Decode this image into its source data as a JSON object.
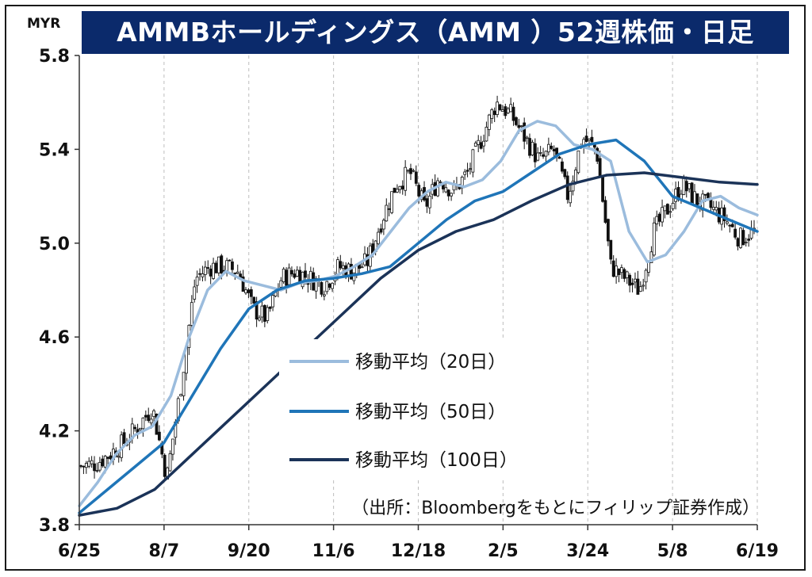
{
  "header": {
    "title": "AMMBホールディングス（AMM ）52週株価・日足",
    "unit": "MYR"
  },
  "source_note": "（出所：Bloombergをもとにフィリップ証券作成）",
  "chart_data": {
    "type": "line",
    "title": "AMMBホールディングス（AMM ）52週株価・日足",
    "ylabel": "MYR",
    "ylim": [
      3.8,
      5.8
    ],
    "yticks": [
      "3.8",
      "4.2",
      "4.6",
      "5.0",
      "5.4",
      "5.8"
    ],
    "yticks_values": [
      3.8,
      4.2,
      4.6,
      5.0,
      5.4,
      5.8
    ],
    "xticks": [
      "6/25",
      "8/7",
      "9/20",
      "11/6",
      "12/18",
      "2/5",
      "3/24",
      "5/8",
      "6/19"
    ],
    "grid": "vertical dashed",
    "legend_position": "center",
    "price_style": "candlestick",
    "price_anchors": [
      4.05,
      4.06,
      4.1,
      4.15,
      4.22,
      4.3,
      4.0,
      4.4,
      4.85,
      4.9,
      4.9,
      4.88,
      4.72,
      4.68,
      4.85,
      4.88,
      4.85,
      4.82,
      4.9,
      4.88,
      4.92,
      5.1,
      5.25,
      5.3,
      5.15,
      5.28,
      5.22,
      5.3,
      5.45,
      5.6,
      5.55,
      5.45,
      5.35,
      5.4,
      5.2,
      5.45,
      5.4,
      4.9,
      4.85,
      4.8,
      5.05,
      5.15,
      5.25,
      5.18,
      5.15,
      5.1,
      5.02,
      5.05
    ],
    "series": [
      {
        "name": "移動平均（20日）",
        "color": "#9bbcdd",
        "values": [
          3.88,
          3.98,
          4.1,
          4.18,
          4.22,
          4.35,
          4.6,
          4.8,
          4.88,
          4.84,
          4.82,
          4.8,
          4.83,
          4.84,
          4.86,
          4.9,
          4.95,
          5.05,
          5.15,
          5.22,
          5.26,
          5.24,
          5.27,
          5.35,
          5.48,
          5.52,
          5.5,
          5.42,
          5.4,
          5.35,
          5.05,
          4.92,
          4.95,
          5.05,
          5.18,
          5.2,
          5.15,
          5.12
        ]
      },
      {
        "name": "移動平均（50日）",
        "color": "#1f75b8",
        "values": [
          3.85,
          3.95,
          4.05,
          4.15,
          4.35,
          4.55,
          4.72,
          4.8,
          4.84,
          4.85,
          4.87,
          4.9,
          5.0,
          5.1,
          5.18,
          5.22,
          5.3,
          5.38,
          5.42,
          5.44,
          5.35,
          5.2,
          5.15,
          5.1,
          5.05
        ]
      },
      {
        "name": "移動平均（100日）",
        "color": "#1b3358",
        "values": [
          3.84,
          3.87,
          3.95,
          4.1,
          4.25,
          4.4,
          4.55,
          4.7,
          4.85,
          4.97,
          5.05,
          5.1,
          5.18,
          5.25,
          5.29,
          5.3,
          5.28,
          5.26,
          5.25
        ]
      }
    ]
  }
}
